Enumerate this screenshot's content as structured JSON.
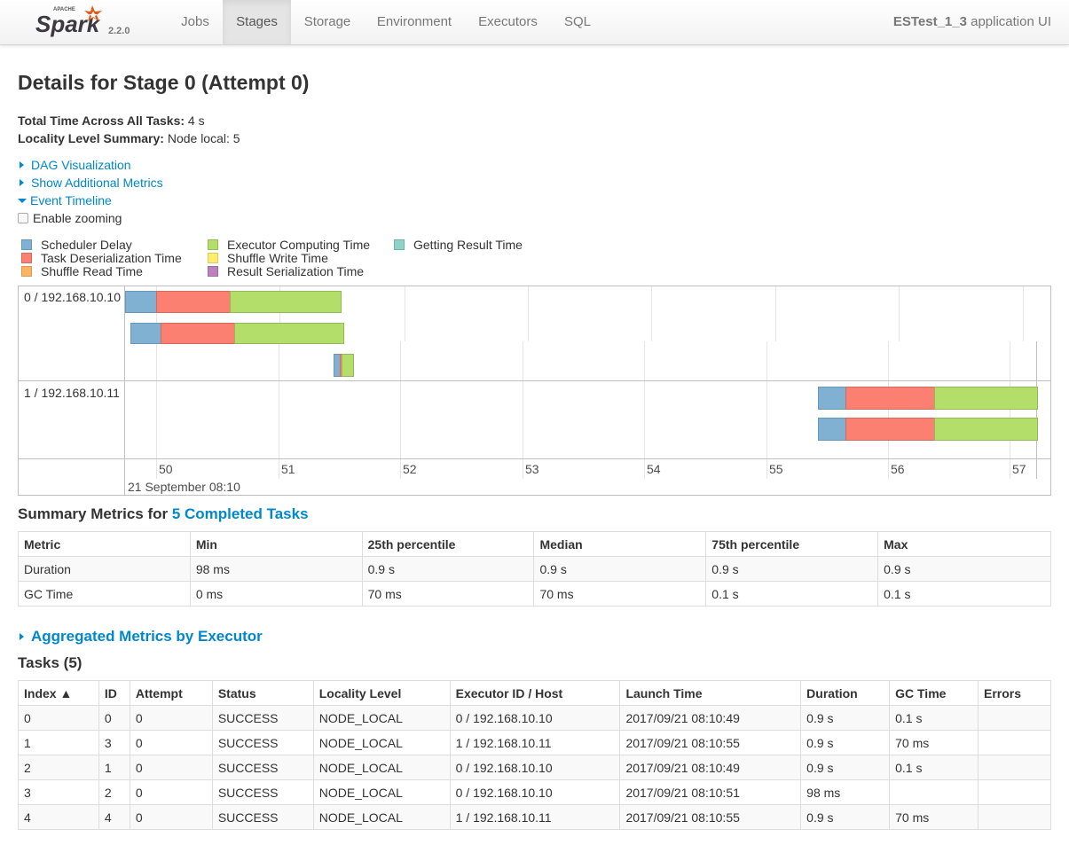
{
  "navbar": {
    "logo_word": "Spark",
    "logo_tag": "APACHE",
    "version": "2.2.0",
    "tabs": [
      {
        "label": "Jobs",
        "active": false
      },
      {
        "label": "Stages",
        "active": true
      },
      {
        "label": "Storage",
        "active": false
      },
      {
        "label": "Environment",
        "active": false
      },
      {
        "label": "Executors",
        "active": false
      },
      {
        "label": "SQL",
        "active": false
      }
    ],
    "app_name": "ESTest_1_3",
    "app_suffix": " application UI"
  },
  "page": {
    "title": "Details for Stage 0 (Attempt 0)",
    "total_time_label": "Total Time Across All Tasks:",
    "total_time_value": " 4 s",
    "locality_label": "Locality Level Summary:",
    "locality_value": " Node local: 5"
  },
  "expanders": {
    "dag": "DAG Visualization",
    "metrics": "Show Additional Metrics",
    "timeline": "Event Timeline",
    "zoom": "Enable zooming"
  },
  "legend": [
    {
      "label": "Scheduler Delay",
      "color": "#80b1d3"
    },
    {
      "label": "Task Deserialization Time",
      "color": "#fb8072"
    },
    {
      "label": "Shuffle Read Time",
      "color": "#fdb462"
    },
    {
      "label": "Executor Computing Time",
      "color": "#b3de69"
    },
    {
      "label": "Shuffle Write Time",
      "color": "#ffed6f"
    },
    {
      "label": "Result Serialization Time",
      "color": "#bc80bd"
    },
    {
      "label": "Getting Result Time",
      "color": "#8dd3c7"
    }
  ],
  "timeline": {
    "groups": [
      "0 / 192.168.10.10",
      "1 / 192.168.10.11"
    ],
    "ticks": [
      "50",
      "51",
      "52",
      "53",
      "54",
      "55",
      "56",
      "57"
    ],
    "date_label": "21 September 08:10"
  },
  "summary": {
    "title_prefix": "Summary Metrics for ",
    "title_link": "5 Completed Tasks",
    "headers": [
      "Metric",
      "Min",
      "25th percentile",
      "Median",
      "75th percentile",
      "Max"
    ],
    "rows": [
      [
        "Duration",
        "98 ms",
        "0.9 s",
        "0.9 s",
        "0.9 s",
        "0.9 s"
      ],
      [
        "GC Time",
        "0 ms",
        "70 ms",
        "70 ms",
        "0.1 s",
        "0.1 s"
      ]
    ]
  },
  "aggregated": {
    "label": "Aggregated Metrics by Executor"
  },
  "tasks": {
    "title": "Tasks (5)",
    "headers": [
      "Index ▲",
      "ID",
      "Attempt",
      "Status",
      "Locality Level",
      "Executor ID / Host",
      "Launch Time",
      "Duration",
      "GC Time",
      "Errors"
    ],
    "rows": [
      [
        "0",
        "0",
        "0",
        "SUCCESS",
        "NODE_LOCAL",
        "0 / 192.168.10.10",
        "2017/09/21 08:10:49",
        "0.9 s",
        "0.1 s",
        ""
      ],
      [
        "1",
        "3",
        "0",
        "SUCCESS",
        "NODE_LOCAL",
        "1 / 192.168.10.11",
        "2017/09/21 08:10:55",
        "0.9 s",
        "70 ms",
        ""
      ],
      [
        "2",
        "1",
        "0",
        "SUCCESS",
        "NODE_LOCAL",
        "0 / 192.168.10.10",
        "2017/09/21 08:10:49",
        "0.9 s",
        "0.1 s",
        ""
      ],
      [
        "3",
        "2",
        "0",
        "SUCCESS",
        "NODE_LOCAL",
        "0 / 192.168.10.10",
        "2017/09/21 08:10:51",
        "98 ms",
        "",
        ""
      ],
      [
        "4",
        "4",
        "0",
        "SUCCESS",
        "NODE_LOCAL",
        "1 / 192.168.10.11",
        "2017/09/21 08:10:55",
        "0.9 s",
        "70 ms",
        ""
      ]
    ]
  }
}
